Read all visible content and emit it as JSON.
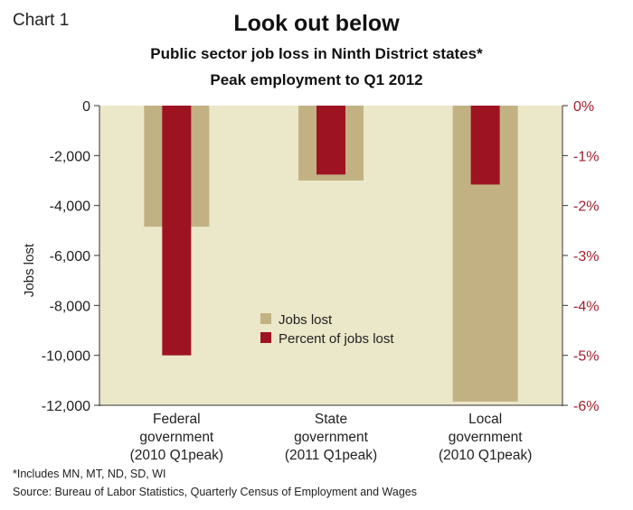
{
  "header": {
    "chart_label": "Chart 1",
    "title": "Look out below",
    "subtitle_line1": "Public sector job loss in Ninth District states*",
    "subtitle_line2": "Peak employment to Q1 2012"
  },
  "footnotes": {
    "note": "*Includes MN, MT, ND, SD, WI",
    "source": "Source: Bureau of Labor Statistics, Quarterly Census of Employment and Wages"
  },
  "colors": {
    "plot_background": "#ebe7c9",
    "jobs_lost": "#c2b283",
    "percent_lost": "#9e1322",
    "right_axis_text": "#a31d2a"
  },
  "chart_data": {
    "type": "bar",
    "categories": [
      [
        "Federal",
        "government",
        "(2010 Q1peak)"
      ],
      [
        "State",
        "government",
        "(2011 Q1peak)"
      ],
      [
        "Local",
        "government",
        "(2010 Q1peak)"
      ]
    ],
    "series": [
      {
        "name": "Jobs lost",
        "axis": "left",
        "values": [
          -4850,
          -3000,
          -11850
        ]
      },
      {
        "name": "Percent of jobs lost",
        "axis": "right",
        "values": [
          -5.0,
          -1.38,
          -1.58
        ]
      }
    ],
    "ylabel": "Jobs lost",
    "ylim_left": [
      -12000,
      0
    ],
    "ylim_right": [
      -6,
      0
    ],
    "left_ticks": [
      "0",
      "-2,000",
      "-4,000",
      "-6,000",
      "-8,000",
      "-10,000",
      "-12,000"
    ],
    "right_ticks": [
      "0%",
      "-1%",
      "-2%",
      "-3%",
      "-4%",
      "-5%",
      "-6%"
    ],
    "legend": [
      "Jobs lost",
      "Percent of jobs lost"
    ],
    "legend_position": "center",
    "grid": false
  }
}
